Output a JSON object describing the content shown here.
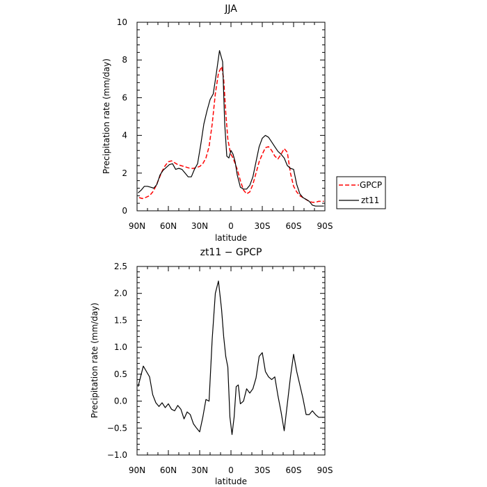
{
  "chart_data": [
    {
      "type": "line",
      "title": "JJA",
      "xlabel": "latitude",
      "ylabel": "Precipitation rate (mm/day)",
      "xlim": [
        90,
        -90
      ],
      "ylim": [
        0,
        10
      ],
      "xticks": [
        90,
        60,
        30,
        0,
        -30,
        -60,
        -90
      ],
      "xtick_labels": [
        "90N",
        "60N",
        "30N",
        "0",
        "30S",
        "60S",
        "90S"
      ],
      "yticks": [
        0,
        2,
        4,
        6,
        8,
        10
      ],
      "ytick_labels": [
        "0",
        "2",
        "4",
        "6",
        "8",
        "10"
      ],
      "legend_position": "right-outside",
      "series": [
        {
          "name": "GPCP",
          "color": "#ff0000",
          "style": "dashed",
          "x": [
            88,
            85,
            82,
            78,
            75,
            72,
            69,
            66,
            63,
            60,
            57,
            54,
            51,
            48,
            45,
            42,
            39,
            36,
            33,
            30,
            27,
            24,
            21,
            18,
            15,
            12,
            9,
            7,
            5,
            3,
            1,
            0,
            -2,
            -4,
            -6,
            -9,
            -12,
            -15,
            -18,
            -21,
            -24,
            -27,
            -30,
            -33,
            -36,
            -39,
            -42,
            -45,
            -48,
            -51,
            -54,
            -57,
            -60,
            -63,
            -66,
            -69,
            -72,
            -75,
            -78,
            -81,
            -84,
            -87,
            -89
          ],
          "y": [
            0.7,
            0.65,
            0.7,
            0.8,
            1.0,
            1.3,
            1.7,
            2.1,
            2.4,
            2.6,
            2.65,
            2.55,
            2.45,
            2.4,
            2.35,
            2.3,
            2.25,
            2.25,
            2.3,
            2.35,
            2.5,
            2.8,
            3.4,
            4.6,
            6.2,
            7.3,
            7.65,
            7.0,
            5.2,
            3.8,
            3.2,
            3.0,
            2.8,
            2.5,
            2.2,
            1.6,
            1.1,
            0.9,
            1.0,
            1.4,
            2.0,
            2.6,
            3.0,
            3.35,
            3.4,
            3.2,
            2.9,
            2.75,
            3.0,
            3.3,
            3.1,
            2.0,
            1.3,
            1.0,
            0.8,
            0.7,
            0.6,
            0.5,
            0.45,
            0.45,
            0.5,
            0.5,
            0.5
          ]
        },
        {
          "name": "zt11",
          "color": "#000000",
          "style": "solid",
          "x": [
            89,
            86,
            83,
            80,
            77,
            74,
            71,
            68,
            65,
            62,
            59,
            56,
            53,
            50,
            47,
            44,
            41,
            38,
            35,
            32,
            29,
            26,
            23,
            20,
            17,
            14,
            11,
            8,
            6,
            4,
            2,
            0,
            -2,
            -4,
            -6,
            -9,
            -12,
            -15,
            -18,
            -21,
            -24,
            -27,
            -30,
            -33,
            -36,
            -39,
            -42,
            -45,
            -48,
            -51,
            -54,
            -57,
            -60,
            -63,
            -66,
            -69,
            -72,
            -75,
            -78,
            -81,
            -84,
            -87,
            -89
          ],
          "y": [
            0.95,
            1.1,
            1.3,
            1.3,
            1.25,
            1.2,
            1.4,
            1.9,
            2.15,
            2.3,
            2.45,
            2.5,
            2.2,
            2.25,
            2.2,
            2.0,
            1.8,
            1.8,
            2.2,
            2.5,
            3.5,
            4.6,
            5.3,
            5.9,
            6.2,
            7.3,
            8.5,
            7.9,
            4.6,
            2.9,
            2.8,
            3.2,
            3.0,
            2.6,
            1.9,
            1.25,
            1.15,
            1.15,
            1.35,
            1.8,
            2.6,
            3.4,
            3.85,
            4.0,
            3.9,
            3.65,
            3.4,
            3.15,
            3.0,
            2.8,
            2.4,
            2.25,
            2.2,
            1.4,
            0.9,
            0.7,
            0.6,
            0.5,
            0.3,
            0.25,
            0.25,
            0.25,
            0.25
          ]
        }
      ]
    },
    {
      "type": "line",
      "title": "zt11 − GPCP",
      "xlabel": "latitude",
      "ylabel": "Precipitation rate (mm/day)",
      "xlim": [
        90,
        -90
      ],
      "ylim": [
        -1.0,
        2.5
      ],
      "xticks": [
        90,
        60,
        30,
        0,
        -30,
        -60,
        -90
      ],
      "xtick_labels": [
        "90N",
        "60N",
        "30N",
        "0",
        "30S",
        "60S",
        "90S"
      ],
      "yticks": [
        -1.0,
        -0.5,
        0.0,
        0.5,
        1.0,
        1.5,
        2.0,
        2.5
      ],
      "ytick_labels": [
        "−1.0",
        "−0.5",
        "0.0",
        "0.5",
        "1.0",
        "1.5",
        "2.0",
        "2.5"
      ],
      "series": [
        {
          "color": "#000000",
          "style": "solid",
          "x": [
            89,
            84,
            81,
            78,
            75,
            72,
            69,
            66,
            63,
            60,
            57,
            54,
            51,
            48,
            45,
            42,
            39,
            36,
            33,
            30,
            27,
            24,
            21,
            18,
            15,
            12,
            9,
            7,
            5,
            3,
            1,
            -1,
            -3,
            -5,
            -7,
            -9,
            -12,
            -15,
            -18,
            -21,
            -24,
            -27,
            -30,
            -33,
            -36,
            -39,
            -42,
            -45,
            -48,
            -51,
            -54,
            -57,
            -60,
            -63,
            -66,
            -69,
            -72,
            -75,
            -78,
            -81,
            -84,
            -87,
            -89
          ],
          "y": [
            0.27,
            0.65,
            0.55,
            0.45,
            0.12,
            -0.03,
            -0.1,
            -0.03,
            -0.12,
            -0.05,
            -0.15,
            -0.18,
            -0.08,
            -0.15,
            -0.33,
            -0.2,
            -0.25,
            -0.42,
            -0.5,
            -0.57,
            -0.3,
            0.03,
            0.0,
            1.15,
            2.0,
            2.23,
            1.7,
            1.2,
            0.83,
            0.63,
            -0.3,
            -0.62,
            -0.3,
            0.27,
            0.3,
            -0.05,
            0.0,
            0.23,
            0.15,
            0.23,
            0.43,
            0.83,
            0.9,
            0.55,
            0.45,
            0.4,
            0.45,
            0.1,
            -0.2,
            -0.55,
            -0.05,
            0.45,
            0.87,
            0.55,
            0.3,
            0.05,
            -0.25,
            -0.25,
            -0.18,
            -0.25,
            -0.3,
            -0.3,
            -0.3
          ]
        }
      ]
    }
  ]
}
